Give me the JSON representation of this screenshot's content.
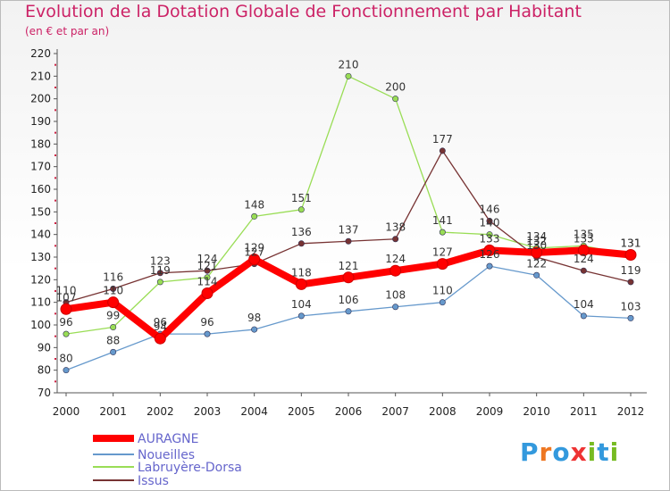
{
  "header": {
    "title": "Evolution de la Dotation Globale de Fonctionnement par Habitant",
    "subtitle": "(en € et par an)"
  },
  "logo": {
    "text": "Proxiti"
  },
  "chart_data": {
    "type": "line",
    "title": "Evolution de la Dotation Globale de Fonctionnement par Habitant",
    "subtitle": "(en € et par an)",
    "xlabel": "",
    "ylabel": "",
    "categories": [
      "2000",
      "2001",
      "2002",
      "2003",
      "2004",
      "2005",
      "2006",
      "2007",
      "2008",
      "2009",
      "2010",
      "2011",
      "2012"
    ],
    "ylim": [
      70,
      220
    ],
    "yticks": [
      70,
      80,
      90,
      100,
      110,
      120,
      130,
      140,
      150,
      160,
      170,
      180,
      190,
      200,
      210,
      220
    ],
    "grid": false,
    "legend_position": "bottom-left",
    "series": [
      {
        "name": "AURAGNE",
        "color": "#ff0000",
        "values": [
          107,
          110,
          94,
          114,
          129,
          118,
          121,
          124,
          127,
          133,
          132,
          133,
          131
        ]
      },
      {
        "name": "Noueilles",
        "color": "#6699cc",
        "values": [
          80,
          88,
          96,
          96,
          98,
          104,
          106,
          108,
          110,
          126,
          122,
          104,
          103
        ]
      },
      {
        "name": "Labruyère-Dorsa",
        "color": "#99dd55",
        "values": [
          96,
          99,
          119,
          121,
          148,
          151,
          210,
          200,
          141,
          140,
          134,
          135,
          131
        ]
      },
      {
        "name": "Issus",
        "color": "#773333",
        "values": [
          110,
          116,
          123,
          124,
          127,
          136,
          137,
          138,
          177,
          146,
          130,
          124,
          119
        ]
      }
    ]
  }
}
